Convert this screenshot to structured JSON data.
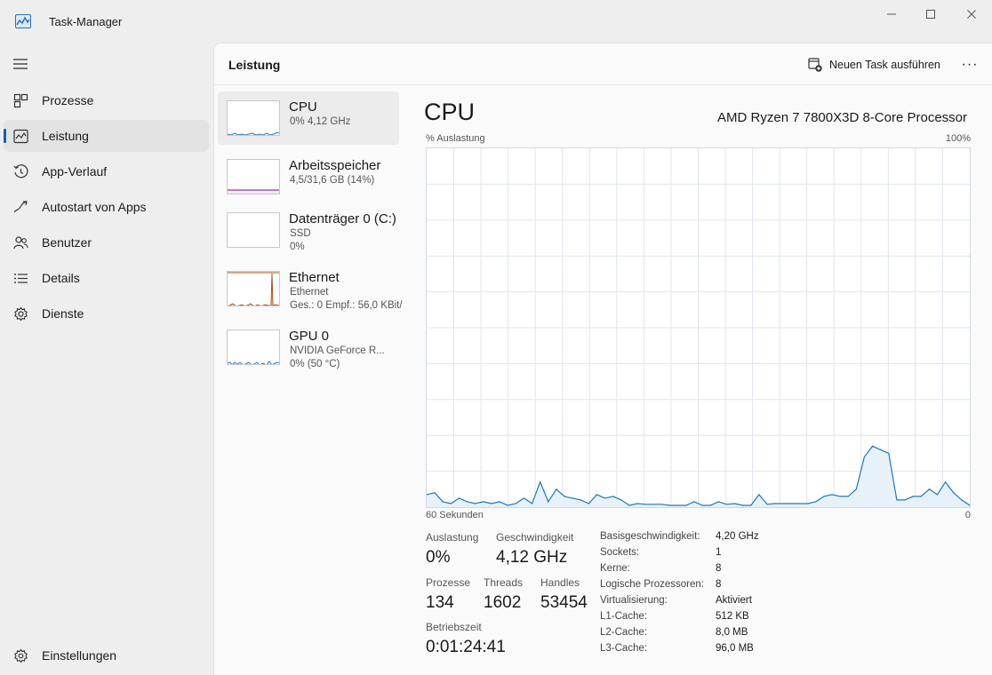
{
  "window": {
    "title": "Task-Manager",
    "icon": "task-manager-icon"
  },
  "sidebar": {
    "items": [
      {
        "label": "Prozesse",
        "icon": "processes-icon"
      },
      {
        "label": "Leistung",
        "icon": "performance-icon",
        "active": true
      },
      {
        "label": "App-Verlauf",
        "icon": "history-icon"
      },
      {
        "label": "Autostart von Apps",
        "icon": "startup-icon"
      },
      {
        "label": "Benutzer",
        "icon": "users-icon"
      },
      {
        "label": "Details",
        "icon": "details-icon"
      },
      {
        "label": "Dienste",
        "icon": "services-icon"
      }
    ],
    "settings_label": "Einstellungen"
  },
  "header": {
    "title": "Leistung",
    "run_task_label": "Neuen Task ausführen",
    "more_label": "···"
  },
  "devices": [
    {
      "name": "CPU",
      "lines": [
        "0% 4,12 GHz"
      ],
      "color": "#1f78c1",
      "active": true
    },
    {
      "name": "Arbeitsspeicher",
      "lines": [
        "4,5/31,6 GB (14%)"
      ],
      "color": "#8e3ea6"
    },
    {
      "name": "Datenträger 0 (C:)",
      "lines": [
        "SSD",
        "0%"
      ],
      "color": "#4c9a2a"
    },
    {
      "name": "Ethernet",
      "lines": [
        "Ethernet",
        "Ges.: 0 Empf.: 56,0 KBit/"
      ],
      "color": "#a7531a"
    },
    {
      "name": "GPU 0",
      "lines": [
        "NVIDIA GeForce R...",
        "0%  (50 °C)"
      ],
      "color": "#1f78c1"
    }
  ],
  "cpu": {
    "title": "CPU",
    "model": "AMD Ryzen 7 7800X3D 8-Core Processor",
    "axis_top_left": "% Auslastung",
    "axis_top_right": "100%",
    "axis_bottom_left": "60 Sekunden",
    "axis_bottom_right": "0",
    "line_color": "#1f78c1",
    "grid_color": "#dfe6ee"
  },
  "chart_data": {
    "type": "area",
    "title": "CPU",
    "ylabel": "% Auslastung",
    "xlabel": "60 Sekunden",
    "ylim": [
      0,
      100
    ],
    "x_label_range": [
      "60 Sekunden",
      "0"
    ],
    "grid": true,
    "series": [
      {
        "values": [
          3.5,
          4,
          1.5,
          1,
          2.5,
          1.5,
          1,
          1.5,
          1,
          1.5,
          0.5,
          1,
          2.5,
          1,
          7,
          1.5,
          5,
          3,
          2.5,
          2,
          1,
          3.5,
          2.5,
          3,
          2,
          0.5,
          1,
          0.8,
          0.8,
          0.8,
          0.5,
          0.5,
          0.5,
          1.5,
          0.5,
          0.5,
          1.5,
          0.8,
          1,
          0.5,
          0.5,
          3.5,
          0.8,
          1,
          1,
          1,
          1,
          1,
          1.5,
          3,
          3.5,
          3,
          3,
          5,
          14,
          17,
          16,
          15,
          2,
          2,
          3,
          3,
          5,
          3.5,
          7,
          4,
          2,
          0.5
        ]
      }
    ]
  },
  "stats": {
    "utilization_label": "Auslastung",
    "utilization_value": "0%",
    "speed_label": "Geschwindigkeit",
    "speed_value": "4,12 GHz",
    "processes_label": "Prozesse",
    "processes_value": "134",
    "threads_label": "Threads",
    "threads_value": "1602",
    "handles_label": "Handles",
    "handles_value": "53454",
    "uptime_label": "Betriebszeit",
    "uptime_value": "0:01:24:41"
  },
  "details": [
    {
      "label": "Basisgeschwindigkeit:",
      "value": "4,20 GHz"
    },
    {
      "label": "Sockets:",
      "value": "1"
    },
    {
      "label": "Kerne:",
      "value": "8"
    },
    {
      "label": "Logische Prozessoren:",
      "value": "8"
    },
    {
      "label": "Virtualisierung:",
      "value": "Aktiviert"
    },
    {
      "label": "L1-Cache:",
      "value": "512 KB"
    },
    {
      "label": "L2-Cache:",
      "value": "8,0 MB"
    },
    {
      "label": "L3-Cache:",
      "value": "96,0 MB"
    }
  ]
}
